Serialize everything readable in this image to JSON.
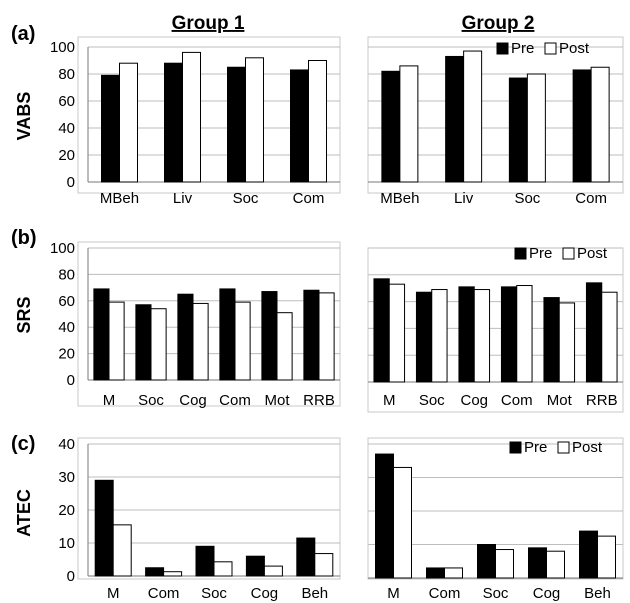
{
  "group_titles": [
    "Group 1",
    "Group 2"
  ],
  "legend": {
    "pre": "Pre",
    "post": "Post"
  },
  "colors": {
    "pre": "#000000",
    "post": "#ffffff"
  },
  "chart_data": [
    {
      "panel": "(a)",
      "type": "bar",
      "group": "Group 1",
      "ylabel": "VABS",
      "ylim": [
        0,
        100
      ],
      "yticks": [
        0,
        20,
        40,
        60,
        80,
        100
      ],
      "legend": false,
      "categories": [
        "MBeh",
        "Liv",
        "Soc",
        "Com"
      ],
      "series": [
        {
          "name": "Pre",
          "values": [
            79,
            88,
            85,
            83
          ]
        },
        {
          "name": "Post",
          "values": [
            88,
            96,
            92,
            90
          ]
        }
      ]
    },
    {
      "panel": "(a)",
      "type": "bar",
      "group": "Group 2",
      "ylabel": "VABS",
      "ylim": [
        0,
        100
      ],
      "yticks": [
        0,
        20,
        40,
        60,
        80,
        100
      ],
      "legend": true,
      "categories": [
        "MBeh",
        "Liv",
        "Soc",
        "Com"
      ],
      "series": [
        {
          "name": "Pre",
          "values": [
            82,
            93,
            77,
            83
          ]
        },
        {
          "name": "Post",
          "values": [
            86,
            97,
            80,
            85
          ]
        }
      ]
    },
    {
      "panel": "(b)",
      "type": "bar",
      "group": "Group 1",
      "ylabel": "SRS",
      "ylim": [
        0,
        100
      ],
      "yticks": [
        0,
        20,
        40,
        60,
        80,
        100
      ],
      "legend": false,
      "categories": [
        "M",
        "Soc",
        "Cog",
        "Com",
        "Mot",
        "RRB"
      ],
      "series": [
        {
          "name": "Pre",
          "values": [
            69,
            57,
            65,
            69,
            67,
            68
          ]
        },
        {
          "name": "Post",
          "values": [
            59,
            54,
            58,
            59,
            51,
            66
          ]
        }
      ]
    },
    {
      "panel": "(b)",
      "type": "bar",
      "group": "Group 2",
      "ylabel": "SRS",
      "ylim": [
        0,
        100
      ],
      "yticks": [
        0,
        20,
        40,
        60,
        80,
        100
      ],
      "legend": true,
      "categories": [
        "M",
        "Soc",
        "Cog",
        "Com",
        "Mot",
        "RRB"
      ],
      "series": [
        {
          "name": "Pre",
          "values": [
            77,
            67,
            71,
            71,
            63,
            74
          ]
        },
        {
          "name": "Post",
          "values": [
            73,
            69,
            69,
            72,
            59,
            67
          ]
        }
      ]
    },
    {
      "panel": "(c)",
      "type": "bar",
      "group": "Group 1",
      "ylabel": "ATEC",
      "ylim": [
        0,
        40
      ],
      "yticks": [
        0,
        10,
        20,
        30,
        40
      ],
      "legend": false,
      "categories": [
        "M",
        "Com",
        "Soc",
        "Cog",
        "Beh"
      ],
      "series": [
        {
          "name": "Pre",
          "values": [
            29,
            2.5,
            9,
            6,
            11.5
          ]
        },
        {
          "name": "Post",
          "values": [
            15.5,
            1.3,
            4.3,
            3,
            6.8
          ]
        }
      ]
    },
    {
      "panel": "(c)",
      "type": "bar",
      "group": "Group 2",
      "ylabel": "ATEC",
      "ylim": [
        0,
        40
      ],
      "yticks": [
        0,
        10,
        20,
        30,
        40
      ],
      "legend": true,
      "categories": [
        "M",
        "Com",
        "Soc",
        "Cog",
        "Beh"
      ],
      "series": [
        {
          "name": "Pre",
          "values": [
            37,
            3,
            10,
            9,
            14
          ]
        },
        {
          "name": "Post",
          "values": [
            33,
            3,
            8.5,
            8,
            12.5
          ]
        }
      ]
    }
  ]
}
